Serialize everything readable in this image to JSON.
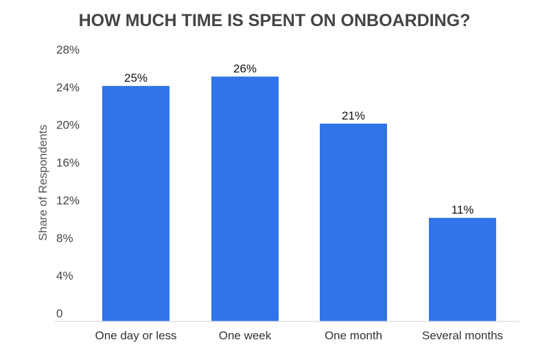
{
  "chart_data": {
    "type": "bar",
    "title": "HOW MUCH TIME IS SPENT ON ONBOARDING?",
    "xlabel": "",
    "ylabel": "Share of Respondents",
    "categories": [
      "One day or less",
      "One week",
      "One month",
      "Several months"
    ],
    "values": [
      25,
      26,
      21,
      11
    ],
    "data_labels": [
      "25%",
      "26%",
      "21%",
      "11%"
    ],
    "ylim": [
      0,
      28
    ],
    "yticks": [
      0,
      4,
      8,
      12,
      16,
      20,
      24,
      28
    ],
    "ytick_labels": [
      "0",
      "4%",
      "8%",
      "12%",
      "16%",
      "20%",
      "24%",
      "28%"
    ],
    "grid": false,
    "legend": "none",
    "bar_color": "#3174E8"
  }
}
